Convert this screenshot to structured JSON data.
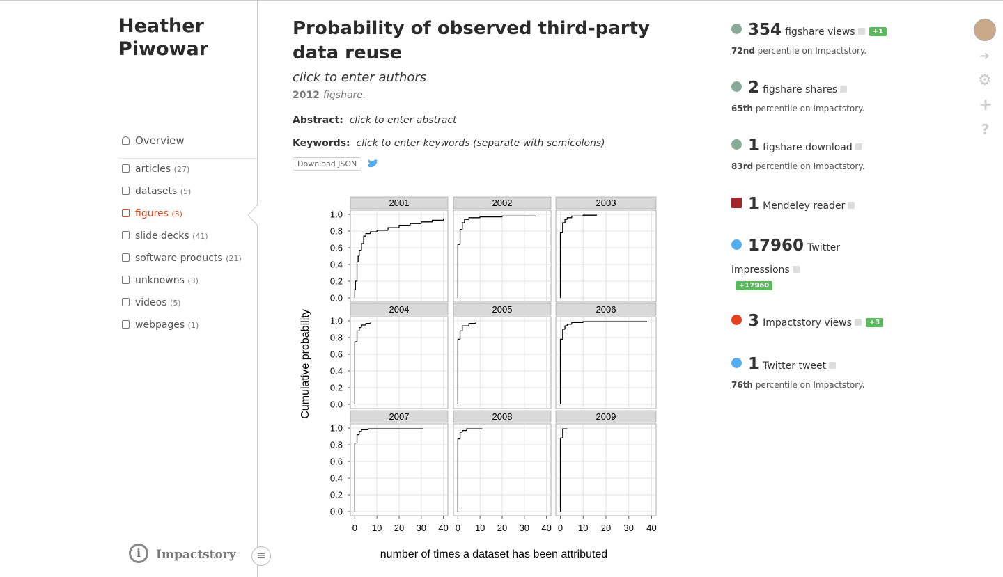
{
  "sidebar": {
    "name_line1": "Heather",
    "name_line2": "Piwowar",
    "overview": "Overview",
    "nav": [
      {
        "label": "articles",
        "count": "(27)"
      },
      {
        "label": "datasets",
        "count": "(5)"
      },
      {
        "label": "figures",
        "count": "(3)"
      },
      {
        "label": "slide decks",
        "count": "(41)"
      },
      {
        "label": "software products",
        "count": "(21)"
      },
      {
        "label": "unknowns",
        "count": "(3)"
      },
      {
        "label": "videos",
        "count": "(5)"
      },
      {
        "label": "webpages",
        "count": "(1)"
      }
    ],
    "brand": "Impactstory"
  },
  "product": {
    "title": "Probability of observed third-party data reuse",
    "authors": "click to enter authors",
    "year": "2012",
    "venue": "figshare.",
    "abstract_label": "Abstract:",
    "abstract": "click to enter abstract",
    "keywords_label": "Keywords:",
    "keywords": "click to enter keywords (separate with semicolons)",
    "download": "Download JSON"
  },
  "chart_data": {
    "type": "step",
    "xlabel": "number of times a dataset has been attributed",
    "ylabel": "Cumulative probability",
    "xlim": [
      -2,
      42
    ],
    "ylim": [
      -0.05,
      1.05
    ],
    "xticks": [
      0,
      10,
      20,
      30,
      40
    ],
    "yticks": [
      {
        "value": 0,
        "label": "0.0"
      },
      0.2,
      0.4,
      0.6,
      0.8,
      {
        "value": 1,
        "label": "1.0"
      }
    ],
    "grid": true,
    "color": "#000000",
    "facets": [
      {
        "title": "2001",
        "x": [
          0,
          0.3,
          1,
          1.5,
          2,
          3,
          4,
          5,
          7,
          10,
          15,
          20,
          25,
          30,
          35,
          40
        ],
        "y": [
          0.1,
          0.2,
          0.43,
          0.5,
          0.57,
          0.65,
          0.74,
          0.77,
          0.79,
          0.81,
          0.84,
          0.87,
          0.89,
          0.91,
          0.93,
          0.95
        ]
      },
      {
        "title": "2002",
        "x": [
          0,
          1,
          2,
          3,
          5,
          10,
          20,
          35
        ],
        "y": [
          0.64,
          0.82,
          0.9,
          0.94,
          0.96,
          0.97,
          0.98,
          0.98
        ]
      },
      {
        "title": "2003",
        "x": [
          0,
          1,
          2,
          3,
          5,
          10,
          16
        ],
        "y": [
          0.78,
          0.9,
          0.94,
          0.96,
          0.98,
          0.99,
          0.99
        ]
      },
      {
        "title": "2004",
        "x": [
          0,
          1,
          2,
          3,
          5,
          7
        ],
        "y": [
          0.75,
          0.88,
          0.92,
          0.95,
          0.97,
          0.98
        ]
      },
      {
        "title": "2005",
        "x": [
          0,
          1,
          2,
          5,
          8
        ],
        "y": [
          0.78,
          0.88,
          0.94,
          0.97,
          0.98
        ]
      },
      {
        "title": "2006",
        "x": [
          0,
          1,
          2,
          3,
          5,
          10,
          38
        ],
        "y": [
          0.78,
          0.9,
          0.94,
          0.96,
          0.98,
          0.99,
          0.99
        ]
      },
      {
        "title": "2007",
        "x": [
          0,
          1,
          2,
          3,
          6,
          31
        ],
        "y": [
          0.82,
          0.92,
          0.96,
          0.98,
          0.99,
          0.99
        ]
      },
      {
        "title": "2008",
        "x": [
          0,
          1,
          2,
          4,
          11
        ],
        "y": [
          0.87,
          0.95,
          0.97,
          0.99,
          0.99
        ]
      },
      {
        "title": "2009",
        "x": [
          0,
          1,
          3
        ],
        "y": [
          0.88,
          0.99,
          0.99
        ]
      }
    ]
  },
  "metrics": [
    {
      "count": 354,
      "label": "figshare views",
      "delta": "+1",
      "percentile": "72nd",
      "percentile_text": "percentile on Impactstory."
    },
    {
      "count": 2,
      "label": "figshare shares",
      "percentile": "65th",
      "percentile_text": "percentile on Impactstory."
    },
    {
      "count": 1,
      "label": "figshare download",
      "percentile": "83rd",
      "percentile_text": "percentile on Impactstory."
    },
    {
      "count": 1,
      "label": "Mendeley reader"
    },
    {
      "count": 17960,
      "label": "Twitter",
      "label2": "impressions",
      "delta": "+17960"
    },
    {
      "count": 3,
      "label": "Impactstory views",
      "delta": "+3"
    },
    {
      "count": 1,
      "label": "Twitter tweet",
      "percentile": "76th",
      "percentile_text": "percentile on Impactstory."
    }
  ]
}
